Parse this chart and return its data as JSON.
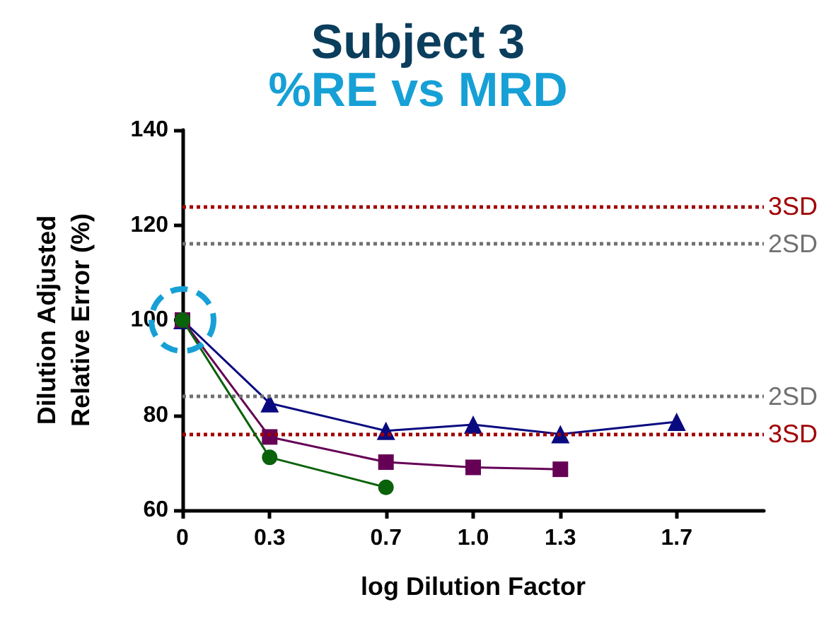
{
  "chart_data": {
    "type": "line",
    "title": "Subject 3",
    "subtitle": "%RE vs MRD",
    "xlabel": "log Dilution Factor",
    "ylabel": "Dilution Adjusted\nRelative Error (%)",
    "xlim": [
      0,
      2
    ],
    "xticks": [
      0,
      {
        "value": 0.3,
        "label": "0.3"
      },
      {
        "value": 0.7,
        "label": "0.7"
      },
      {
        "value": 1,
        "label": "1.0"
      },
      {
        "value": 1.3,
        "label": "1.3"
      },
      {
        "value": 1.7,
        "label": "1.7"
      }
    ],
    "ylim": [
      60,
      140
    ],
    "yticks": [
      60,
      80,
      100,
      120,
      140
    ],
    "series": [
      {
        "color": "#0a0a80",
        "marker": "triangle",
        "x": [
          0,
          0.3,
          0.7,
          1,
          1.3,
          1.7
        ],
        "values": [
          100,
          82.5,
          76.7,
          78,
          76,
          78.6
        ]
      },
      {
        "color": "#650055",
        "marker": "square",
        "x": [
          0,
          0.3,
          0.7,
          1,
          1.3
        ],
        "values": [
          100,
          75.4,
          70.1,
          69,
          68.6
        ]
      },
      {
        "color": "#0a620a",
        "marker": "circle",
        "x": [
          0,
          0.3,
          0.7
        ],
        "values": [
          100,
          71.1,
          64.8
        ]
      }
    ],
    "ref_lines": [
      {
        "axis": "y",
        "value": 124,
        "label": "3SD",
        "color": "#a00000",
        "line_style": "dotted"
      },
      {
        "axis": "y",
        "value": 116,
        "label": "2SD",
        "color": "#707070",
        "line_style": "dotted"
      },
      {
        "axis": "y",
        "value": 84,
        "label": "2SD",
        "color": "#707070",
        "line_style": "dotted"
      },
      {
        "axis": "y",
        "value": 76,
        "label": "3SD",
        "color": "#a00000",
        "line_style": "dotted"
      }
    ]
  }
}
